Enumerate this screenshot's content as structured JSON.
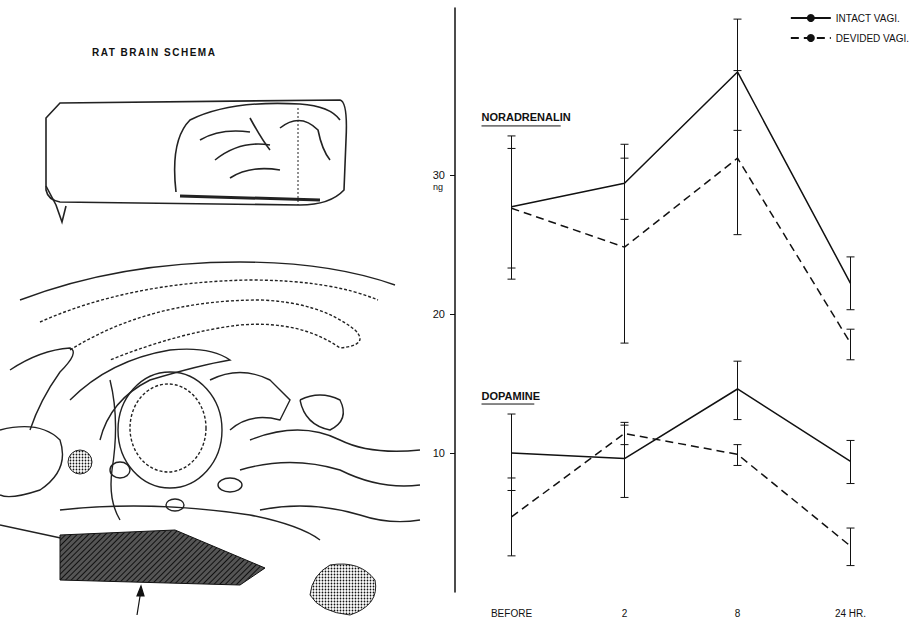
{
  "diagram": {
    "title": "RAT BRAIN SCHEMA"
  },
  "chart_data": {
    "type": "line",
    "categories": [
      "BEFORE",
      "2",
      "8",
      "24 HR."
    ],
    "ylabel": "ng",
    "ylim": [
      0,
      42
    ],
    "yticks": [
      10,
      20,
      30
    ],
    "grid": false,
    "legend": "top-right",
    "annotations": [
      "NORADRENALIN",
      "DOPAMINE"
    ],
    "series": [
      {
        "name": "INTACT VAGI.",
        "group": "NORADRENALIN",
        "color": "#111111",
        "line_style": "solid",
        "values": [
          27.7,
          29.4,
          37.4,
          22.2
        ],
        "error_bars": [
          [
            22.5,
            32.8
          ],
          [
            26.8,
            32.2
          ],
          [
            33.2,
            41.2
          ],
          [
            20.3,
            24.1
          ]
        ]
      },
      {
        "name": "DEVIDED VAGI.",
        "group": "NORADRENALIN",
        "color": "#111111",
        "line_style": "dashed",
        "values": [
          27.6,
          24.8,
          31.2,
          17.9
        ],
        "error_bars": [
          [
            23.3,
            31.9
          ],
          [
            17.9,
            31.2
          ],
          [
            25.7,
            37.5
          ],
          [
            16.7,
            18.9
          ]
        ]
      },
      {
        "name": "INTACT VAGI.",
        "group": "DOPAMINE",
        "color": "#111111",
        "line_style": "solid",
        "values": [
          10.0,
          9.6,
          14.6,
          9.4
        ],
        "error_bars": [
          [
            7.3,
            12.8
          ],
          [
            6.8,
            12.2
          ],
          [
            12.4,
            16.6
          ],
          [
            7.8,
            10.9
          ]
        ]
      },
      {
        "name": "DEVIDED VAGI.",
        "group": "DOPAMINE",
        "color": "#111111",
        "line_style": "dashed",
        "values": [
          5.4,
          11.4,
          9.9,
          3.3
        ],
        "error_bars": [
          [
            2.6,
            8.2
          ],
          [
            10.6,
            12.0
          ],
          [
            9.1,
            10.6
          ],
          [
            1.9,
            4.6
          ]
        ]
      }
    ]
  }
}
